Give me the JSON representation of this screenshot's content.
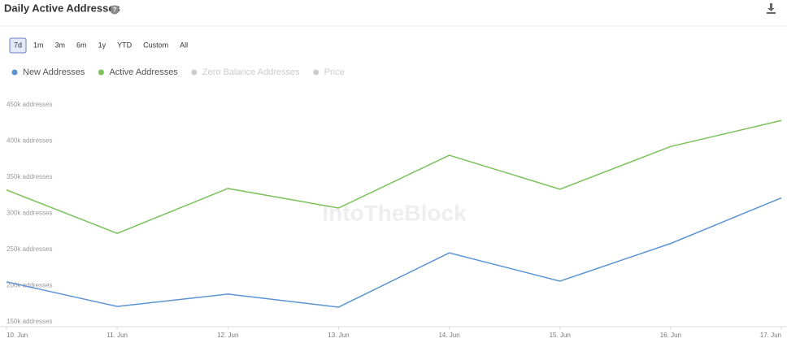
{
  "header": {
    "title": "Daily Active Addresses"
  },
  "ranges": [
    "7d",
    "1m",
    "3m",
    "6m",
    "1y",
    "YTD",
    "Custom",
    "All"
  ],
  "selected_range": "7d",
  "chart_data": {
    "type": "line",
    "watermark": "IntoTheBlock",
    "categories": [
      "10. Jun",
      "11. Jun",
      "12. Jun",
      "13. Jun",
      "14. Jun",
      "15. Jun",
      "16. Jun",
      "17. Jun"
    ],
    "series": [
      {
        "name": "New Addresses",
        "color": "#5b93d3",
        "values": [
          205000,
          171000,
          188000,
          170000,
          245000,
          206000,
          258000,
          321000
        ]
      },
      {
        "name": "Active Addresses",
        "color": "#7cc05a",
        "values": [
          332000,
          272000,
          334000,
          307000,
          380000,
          333000,
          392000,
          428000
        ]
      }
    ],
    "inactive_series": [
      "Zero Balance Addresses",
      "Price"
    ],
    "ylim": [
      143000,
      471000
    ],
    "yticks": [
      {
        "value": 150000,
        "label": "150k addresses"
      },
      {
        "value": 200000,
        "label": "200k addresses"
      },
      {
        "value": 250000,
        "label": "250k addresses"
      },
      {
        "value": 300000,
        "label": "300k addresses"
      },
      {
        "value": 350000,
        "label": "350k addresses"
      },
      {
        "value": 400000,
        "label": "400k addresses"
      },
      {
        "value": 450000,
        "label": "450k addresses"
      }
    ],
    "grid": false
  }
}
